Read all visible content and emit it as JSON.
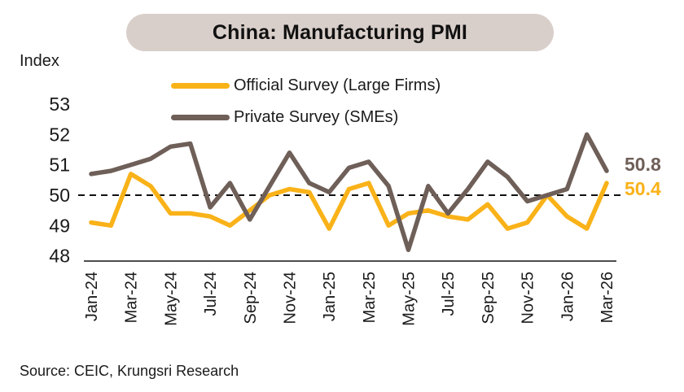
{
  "header": {
    "title": "China: Manufacturing PMI"
  },
  "legend": {
    "official": "Official Survey (Large Firms)",
    "private": "Private Survey (SMEs)"
  },
  "footer": {
    "source": "Source: CEIC, Krungsri Research"
  },
  "colors": {
    "official": "#F9B218",
    "private": "#6E5F58",
    "title_pill_bg": "#D9CFCA",
    "axis": "#4D4D4F",
    "dashed_reference": "#111111",
    "text": "#1A1A1A"
  },
  "chart_data": {
    "type": "line",
    "title": "China: Manufacturing PMI",
    "y_axis_title": "Index",
    "x": [
      "Jan-24",
      "Feb-24",
      "Mar-24",
      "Apr-24",
      "May-24",
      "Jun-24",
      "Jul-24",
      "Aug-24",
      "Sep-24",
      "Oct-24",
      "Nov-24",
      "Dec-24",
      "Jan-25",
      "Feb-25",
      "Mar-25",
      "Apr-25",
      "May-25",
      "Jun-25",
      "Jul-25",
      "Aug-25",
      "Sep-25",
      "Oct-25",
      "Nov-25",
      "Dec-25",
      "Jan-26",
      "Feb-26",
      "Mar-26"
    ],
    "x_tick_labels": [
      "Jan-24",
      "Mar-24",
      "May-24",
      "Jul-24",
      "Sep-24",
      "Nov-24",
      "Jan-25",
      "Mar-25",
      "May-25",
      "Jul-25",
      "Sep-25",
      "Nov-25",
      "Jan-26",
      "Mar-26"
    ],
    "x_tick_every": 2,
    "series": [
      {
        "name": "Official Survey (Large Firms)",
        "color_key": "official",
        "values": [
          49.1,
          49.0,
          50.7,
          50.3,
          49.4,
          49.4,
          49.3,
          49.0,
          49.5,
          50.0,
          50.2,
          50.1,
          48.9,
          50.2,
          50.4,
          49.0,
          49.4,
          49.5,
          49.3,
          49.2,
          49.7,
          48.9,
          49.1,
          50.0,
          49.3,
          48.9,
          50.4
        ]
      },
      {
        "name": "Private Survey (SMEs)",
        "color_key": "private",
        "values": [
          50.7,
          50.8,
          51.0,
          51.2,
          51.6,
          51.7,
          49.6,
          50.4,
          49.2,
          50.3,
          51.4,
          50.4,
          50.1,
          50.9,
          51.1,
          50.3,
          48.2,
          50.3,
          49.4,
          50.2,
          51.1,
          50.6,
          49.8,
          50.0,
          50.2,
          52.0,
          50.8
        ]
      }
    ],
    "y_ticks": [
      53,
      52,
      51,
      50,
      49,
      48
    ],
    "ylim": [
      47.8,
      53.5
    ],
    "reference_line": 50,
    "grid": false,
    "legend_position": "top",
    "end_labels": {
      "private": "50.8",
      "official": "50.4"
    }
  }
}
